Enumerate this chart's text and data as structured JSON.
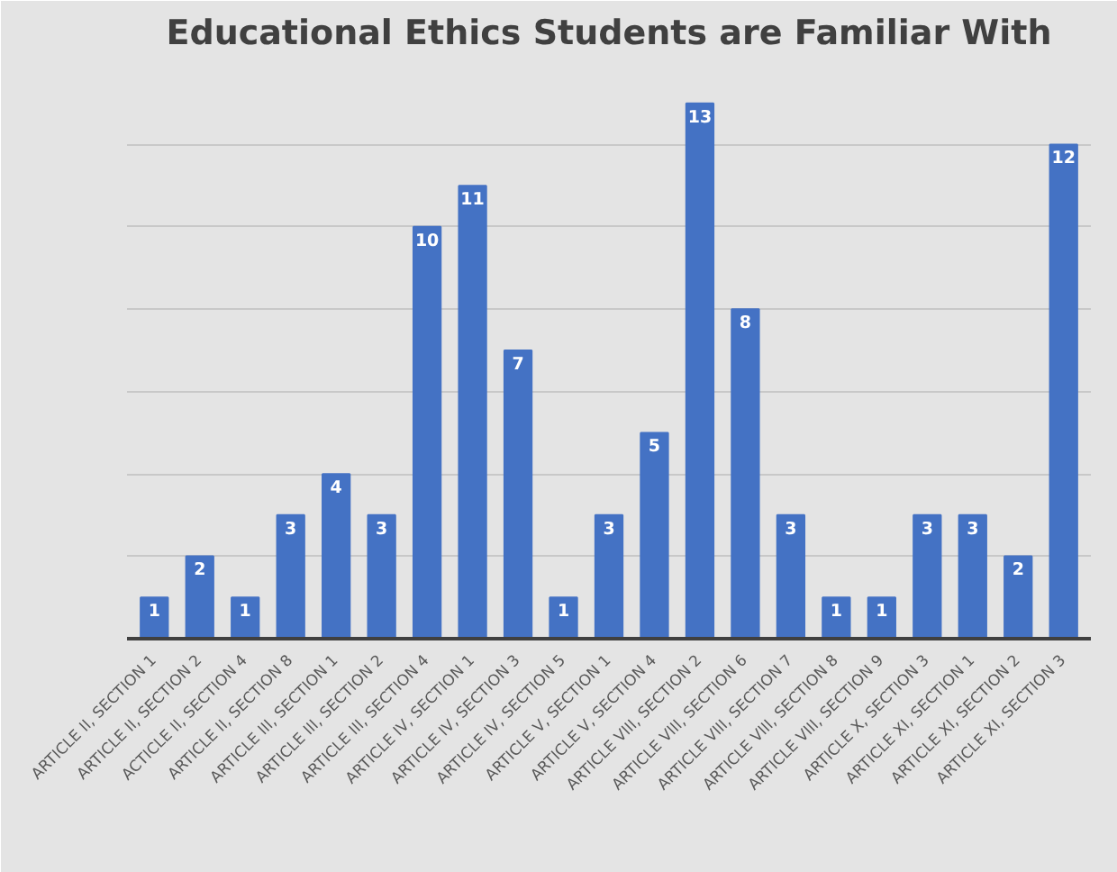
{
  "chart_data": {
    "type": "bar",
    "title": "Educational Ethics Students are Familiar With",
    "categories": [
      "ARTICLE II, SECTION 1",
      "ARTICLE II, SECTION 2",
      "ACTICLE II, SECTION 4",
      "ARTICLE II, SECTION 8",
      "ARTICLE III, SECTION 1",
      "ARTICLE III, SECTION 2",
      "ARTICLE III, SECTION 4",
      "ARTICLE IV, SECTION 1",
      "ARTICLE IV, SECTION 3",
      "ARTICLE IV, SECTION 5",
      "ARTICLE V, SECTION 1",
      "ARTICLE V, SECTION 4",
      "ARTICLE VIII, SECTION 2",
      "ARTICLE VIII, SECTION 6",
      "ARTICLE VIII, SECTION 7",
      "ARTICLE VIII, SECTION 8",
      "ARTICLE VIII, SECTION 9",
      "ARTICLE X, SECTION 3",
      "ARTICLE XI, SECTION 1",
      "ARTICLE XI, SECTION 2",
      "ARTICLE XI, SECTION 3"
    ],
    "values": [
      1,
      2,
      1,
      3,
      4,
      3,
      10,
      11,
      7,
      1,
      3,
      5,
      13,
      8,
      3,
      1,
      1,
      3,
      3,
      2,
      12
    ],
    "color": "#4472c4",
    "data_labels": true,
    "grid": "y",
    "tick_labels": "x",
    "ylim": [
      0,
      14
    ],
    "yticks": [
      {
        "value": 0,
        "label": null
      },
      {
        "value": 2,
        "label": null
      },
      {
        "value": 4,
        "label": null
      },
      {
        "value": 6,
        "label": null
      },
      {
        "value": 8,
        "label": null
      },
      {
        "value": 10,
        "label": null
      },
      {
        "value": 12,
        "label": null
      },
      {
        "value": 14,
        "label": null
      }
    ]
  }
}
